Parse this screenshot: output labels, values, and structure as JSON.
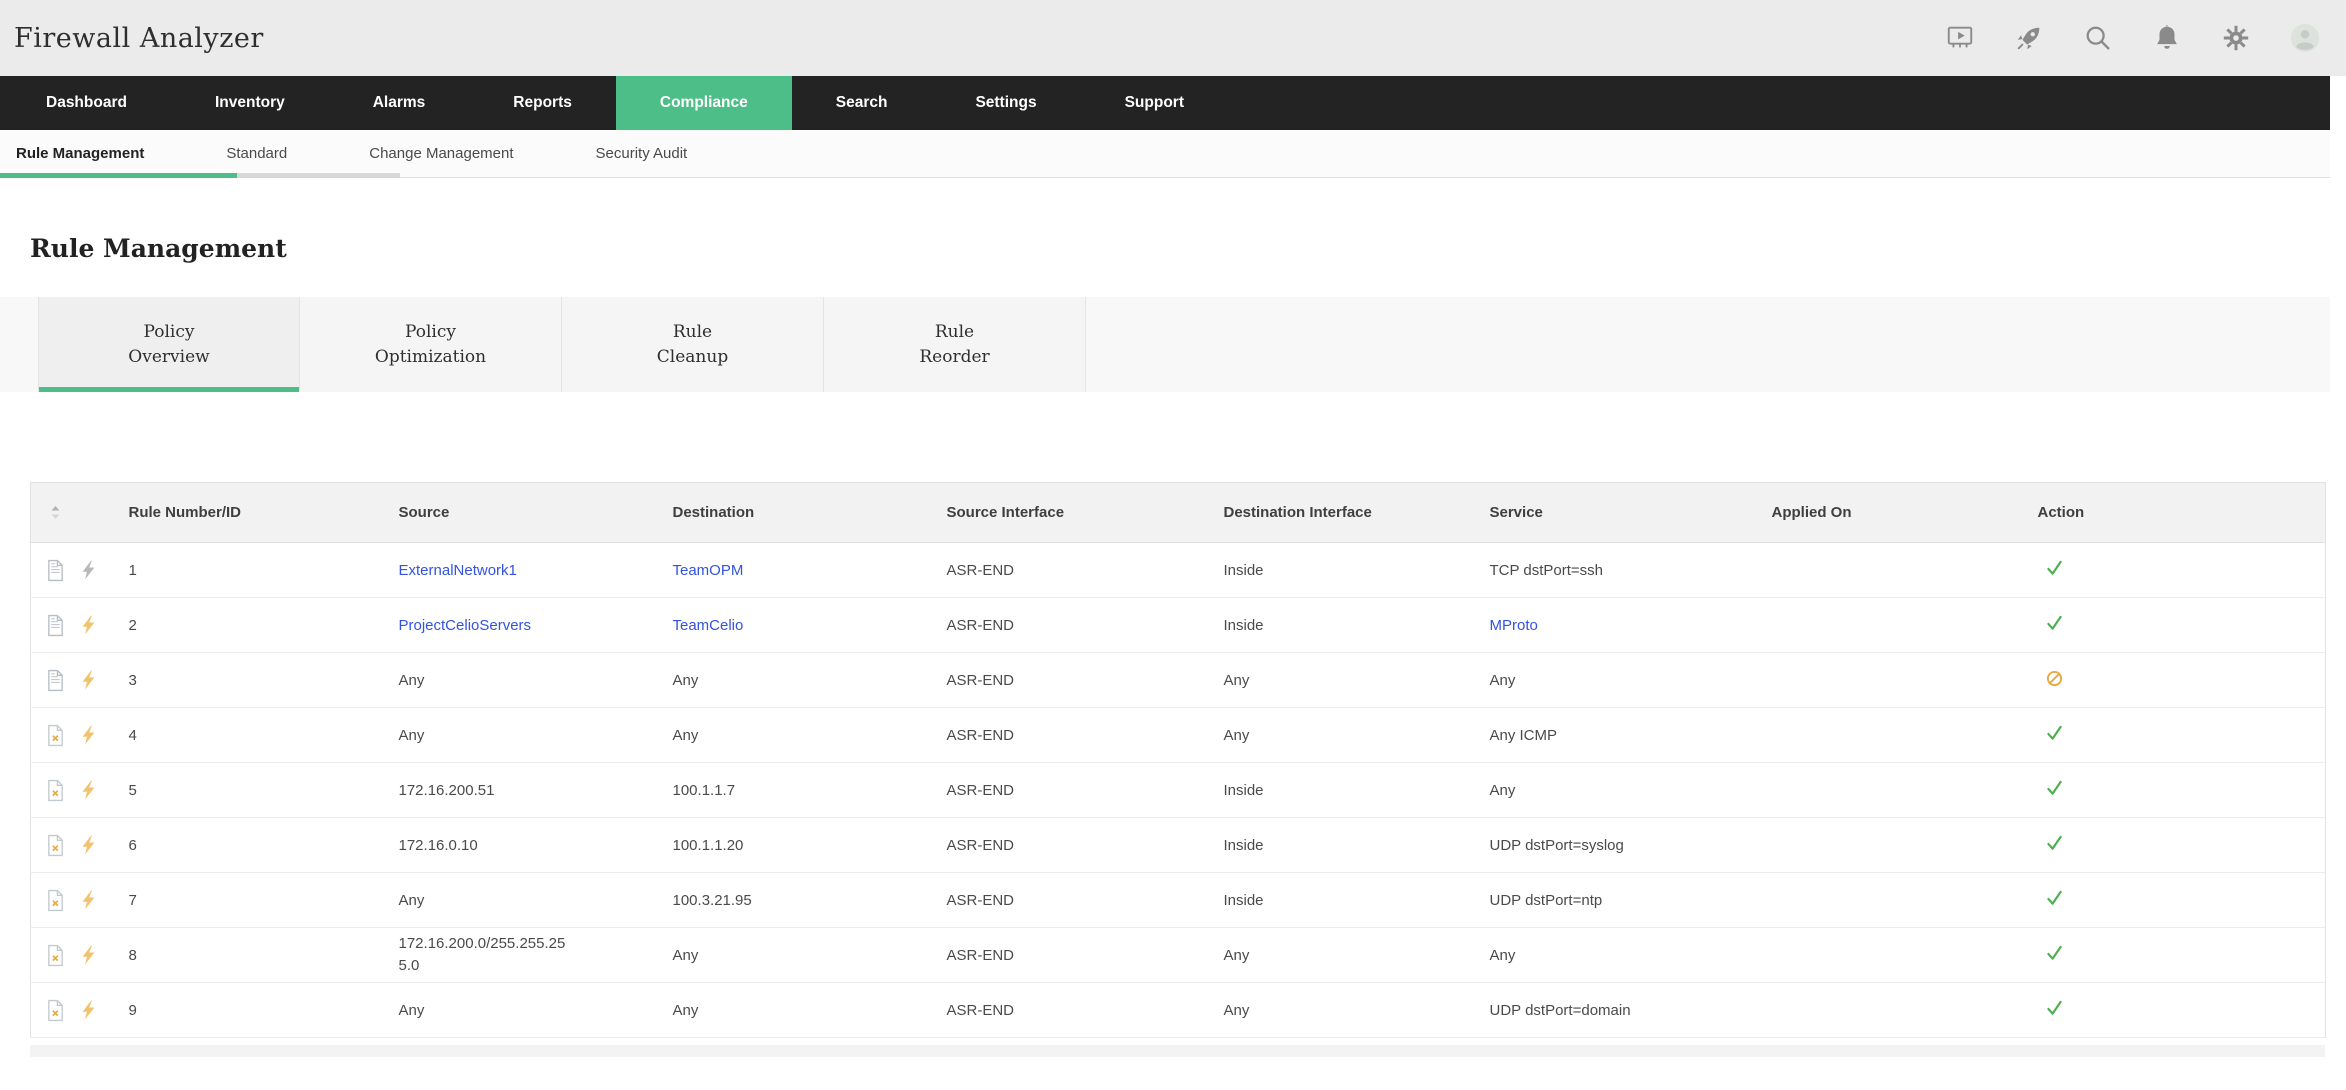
{
  "titlebar": {
    "title": "Firewall Analyzer",
    "icons": [
      {
        "name": "video-tutorial-icon"
      },
      {
        "name": "getting-started-rocket-icon"
      },
      {
        "name": "global-search-icon"
      },
      {
        "name": "notifications-bell-icon"
      },
      {
        "name": "settings-gear-icon"
      },
      {
        "name": "user-avatar"
      }
    ]
  },
  "nav": {
    "items": [
      {
        "label": "Dashboard",
        "active": false
      },
      {
        "label": "Inventory",
        "active": false
      },
      {
        "label": "Alarms",
        "active": false
      },
      {
        "label": "Reports",
        "active": false
      },
      {
        "label": "Compliance",
        "active": true
      },
      {
        "label": "Search",
        "active": false
      },
      {
        "label": "Settings",
        "active": false
      },
      {
        "label": "Support",
        "active": false
      }
    ]
  },
  "subnav": {
    "items": [
      {
        "label": "Rule Management",
        "active": true
      },
      {
        "label": "Standard",
        "active": false
      },
      {
        "label": "Change Management",
        "active": false
      },
      {
        "label": "Security Audit",
        "active": false
      }
    ]
  },
  "page": {
    "heading": "Rule Management"
  },
  "tabs": [
    {
      "lines": [
        "Policy",
        "Overview"
      ],
      "active": true
    },
    {
      "lines": [
        "Policy",
        "Optimization"
      ],
      "active": false
    },
    {
      "lines": [
        "Rule",
        "Cleanup"
      ],
      "active": false
    },
    {
      "lines": [
        "Rule",
        "Reorder"
      ],
      "active": false
    }
  ],
  "table": {
    "columns": [
      "Rule Number/ID",
      "Source",
      "Destination",
      "Source Interface",
      "Destination Interface",
      "Service",
      "Applied On",
      "Action"
    ],
    "rows": [
      {
        "id": "1",
        "doc_icon": "document-lines-icon",
        "bolt": "gray",
        "source": {
          "text": "ExternalNetwork1",
          "link": true
        },
        "destination": {
          "text": "TeamOPM",
          "link": true
        },
        "source_interface": "ASR-END",
        "destination_interface": "Inside",
        "service": {
          "text": "TCP dstPort=ssh",
          "link": false
        },
        "applied_on": "",
        "action": "allow"
      },
      {
        "id": "2",
        "doc_icon": "document-lines-icon",
        "bolt": "orange",
        "source": {
          "text": "ProjectCelioServers",
          "link": true
        },
        "destination": {
          "text": "TeamCelio",
          "link": true
        },
        "source_interface": "ASR-END",
        "destination_interface": "Inside",
        "service": {
          "text": "MProto",
          "link": true
        },
        "applied_on": "",
        "action": "allow"
      },
      {
        "id": "3",
        "doc_icon": "document-lines-icon",
        "bolt": "orange",
        "source": {
          "text": "Any",
          "link": false
        },
        "destination": {
          "text": "Any",
          "link": false
        },
        "source_interface": "ASR-END",
        "destination_interface": "Any",
        "service": {
          "text": "Any",
          "link": false
        },
        "applied_on": "",
        "action": "deny"
      },
      {
        "id": "4",
        "doc_icon": "document-excluded-icon",
        "bolt": "orange",
        "source": {
          "text": "Any",
          "link": false
        },
        "destination": {
          "text": "Any",
          "link": false
        },
        "source_interface": "ASR-END",
        "destination_interface": "Any",
        "service": {
          "text": "Any ICMP",
          "link": false
        },
        "applied_on": "",
        "action": "allow"
      },
      {
        "id": "5",
        "doc_icon": "document-excluded-icon",
        "bolt": "orange",
        "source": {
          "text": "172.16.200.51",
          "link": false
        },
        "destination": {
          "text": "100.1.1.7",
          "link": false
        },
        "source_interface": "ASR-END",
        "destination_interface": "Inside",
        "service": {
          "text": "Any",
          "link": false
        },
        "applied_on": "",
        "action": "allow"
      },
      {
        "id": "6",
        "doc_icon": "document-excluded-icon",
        "bolt": "orange",
        "source": {
          "text": "172.16.0.10",
          "link": false
        },
        "destination": {
          "text": "100.1.1.20",
          "link": false
        },
        "source_interface": "ASR-END",
        "destination_interface": "Inside",
        "service": {
          "text": "UDP dstPort=syslog",
          "link": false
        },
        "applied_on": "",
        "action": "allow"
      },
      {
        "id": "7",
        "doc_icon": "document-excluded-icon",
        "bolt": "orange",
        "source": {
          "text": "Any",
          "link": false
        },
        "destination": {
          "text": "100.3.21.95",
          "link": false
        },
        "source_interface": "ASR-END",
        "destination_interface": "Inside",
        "service": {
          "text": "UDP dstPort=ntp",
          "link": false
        },
        "applied_on": "",
        "action": "allow"
      },
      {
        "id": "8",
        "doc_icon": "document-excluded-icon",
        "bolt": "orange",
        "source": {
          "text": "172.16.200.0/255.255.255.0",
          "link": false
        },
        "destination": {
          "text": "Any",
          "link": false
        },
        "source_interface": "ASR-END",
        "destination_interface": "Any",
        "service": {
          "text": "Any",
          "link": false
        },
        "applied_on": "",
        "action": "allow"
      },
      {
        "id": "9",
        "doc_icon": "document-excluded-icon",
        "bolt": "orange",
        "source": {
          "text": "Any",
          "link": false
        },
        "destination": {
          "text": "Any",
          "link": false
        },
        "source_interface": "ASR-END",
        "destination_interface": "Any",
        "service": {
          "text": "UDP dstPort=domain",
          "link": false
        },
        "applied_on": "",
        "action": "allow"
      }
    ]
  },
  "colors": {
    "accent_green": "#4ebe88",
    "link_blue": "#3353e0",
    "allow_green": "#4caf50",
    "deny_orange": "#e8a843",
    "bolt_orange": "#f1c36f",
    "bolt_gray": "#b8b8b8",
    "nav_bg": "#232323"
  }
}
